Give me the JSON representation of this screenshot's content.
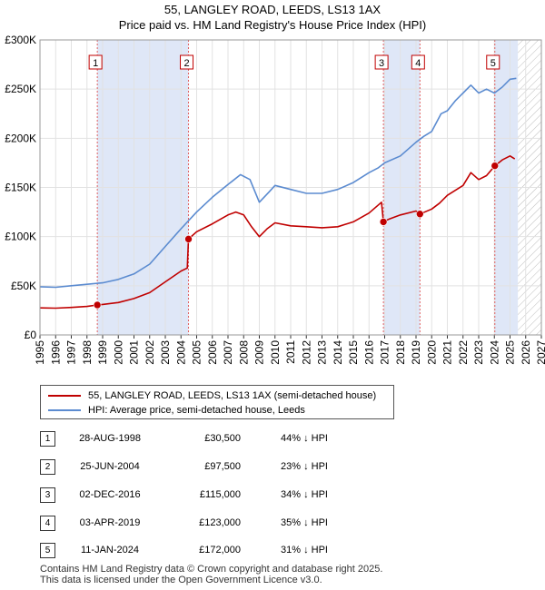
{
  "title_line1": "55, LANGLEY ROAD, LEEDS, LS13 1AX",
  "title_line2": "Price paid vs. HM Land Registry's House Price Index (HPI)",
  "colors": {
    "property": "#c00000",
    "hpi": "#5b8bd0",
    "shade": "#dfe7f7",
    "vline": "#e06060"
  },
  "chart_data": {
    "type": "line",
    "title": "Price paid vs. HM Land Registry's House Price Index (HPI)",
    "xlim": [
      1995,
      2027
    ],
    "ylim": [
      0,
      300000
    ],
    "x_ticks": [
      "1995",
      "1996",
      "1997",
      "1998",
      "1999",
      "2000",
      "2001",
      "2002",
      "2003",
      "2004",
      "2005",
      "2006",
      "2007",
      "2008",
      "2009",
      "2010",
      "2011",
      "2012",
      "2013",
      "2014",
      "2015",
      "2016",
      "2017",
      "2018",
      "2019",
      "2020",
      "2021",
      "2022",
      "2023",
      "2024",
      "2025",
      "2026",
      "2027"
    ],
    "y_ticks": [
      {
        "value": 0,
        "label": "£0"
      },
      {
        "value": 50000,
        "label": "£50K"
      },
      {
        "value": 100000,
        "label": "£100K"
      },
      {
        "value": 150000,
        "label": "£150K"
      },
      {
        "value": 200000,
        "label": "£200K"
      },
      {
        "value": 250000,
        "label": "£250K"
      },
      {
        "value": 300000,
        "label": "£300K"
      }
    ],
    "future_hatch_from": 2025.5,
    "shaded_periods": [
      [
        1998.66,
        2004.48
      ],
      [
        2016.92,
        2019.25
      ],
      [
        2024.03,
        2025.5
      ]
    ],
    "sales": [
      {
        "num": "1",
        "x": 1998.66,
        "value": 30500
      },
      {
        "num": "2",
        "x": 2004.48,
        "value": 97500
      },
      {
        "num": "3",
        "x": 2016.92,
        "value": 115000
      },
      {
        "num": "4",
        "x": 2019.25,
        "value": 123000
      },
      {
        "num": "5",
        "x": 2024.03,
        "value": 172000
      }
    ],
    "series": [
      {
        "name": "55, LANGLEY ROAD, LEEDS, LS13 1AX (semi-detached house)",
        "color": "#c00000",
        "points": [
          [
            1995,
            27500
          ],
          [
            1996,
            27200
          ],
          [
            1997,
            28000
          ],
          [
            1998,
            29000
          ],
          [
            1998.66,
            30500
          ],
          [
            1999,
            31000
          ],
          [
            2000,
            33000
          ],
          [
            2001,
            37000
          ],
          [
            2002,
            43000
          ],
          [
            2003,
            54000
          ],
          [
            2004,
            65000
          ],
          [
            2004.4,
            68000
          ],
          [
            2004.48,
            97500
          ],
          [
            2005,
            105000
          ],
          [
            2006,
            113000
          ],
          [
            2007,
            122000
          ],
          [
            2007.5,
            125000
          ],
          [
            2008,
            122000
          ],
          [
            2008.5,
            110000
          ],
          [
            2009,
            100000
          ],
          [
            2009.5,
            108000
          ],
          [
            2010,
            114000
          ],
          [
            2011,
            111000
          ],
          [
            2012,
            110000
          ],
          [
            2013,
            109000
          ],
          [
            2014,
            110000
          ],
          [
            2015,
            115000
          ],
          [
            2016,
            124000
          ],
          [
            2016.8,
            135000
          ],
          [
            2016.92,
            115000
          ],
          [
            2017.3,
            118000
          ],
          [
            2018,
            122000
          ],
          [
            2019,
            126000
          ],
          [
            2019.25,
            123000
          ],
          [
            2020,
            128000
          ],
          [
            2020.5,
            134000
          ],
          [
            2021,
            142000
          ],
          [
            2022,
            152000
          ],
          [
            2022.5,
            165000
          ],
          [
            2023,
            158000
          ],
          [
            2023.5,
            162000
          ],
          [
            2024.03,
            172000
          ],
          [
            2024.5,
            178000
          ],
          [
            2025,
            182000
          ],
          [
            2025.3,
            179000
          ]
        ]
      },
      {
        "name": "HPI: Average price, semi-detached house, Leeds",
        "color": "#5b8bd0",
        "points": [
          [
            1995,
            49000
          ],
          [
            1996,
            48500
          ],
          [
            1997,
            50000
          ],
          [
            1998,
            51500
          ],
          [
            1999,
            53000
          ],
          [
            2000,
            56500
          ],
          [
            2001,
            62000
          ],
          [
            2002,
            72000
          ],
          [
            2003,
            90000
          ],
          [
            2004,
            108000
          ],
          [
            2005,
            125000
          ],
          [
            2006,
            140000
          ],
          [
            2007,
            153000
          ],
          [
            2007.8,
            163000
          ],
          [
            2008.4,
            158000
          ],
          [
            2009,
            135000
          ],
          [
            2009.6,
            145000
          ],
          [
            2010,
            152000
          ],
          [
            2011,
            148000
          ],
          [
            2012,
            144000
          ],
          [
            2013,
            144000
          ],
          [
            2014,
            148000
          ],
          [
            2015,
            155000
          ],
          [
            2016,
            165000
          ],
          [
            2016.6,
            170000
          ],
          [
            2017,
            175000
          ],
          [
            2018,
            182000
          ],
          [
            2019,
            196000
          ],
          [
            2019.5,
            202000
          ],
          [
            2020,
            207000
          ],
          [
            2020.6,
            225000
          ],
          [
            2021,
            228000
          ],
          [
            2021.5,
            238000
          ],
          [
            2022,
            246000
          ],
          [
            2022.5,
            254000
          ],
          [
            2023,
            246000
          ],
          [
            2023.5,
            250000
          ],
          [
            2024,
            246000
          ],
          [
            2024.5,
            252000
          ],
          [
            2025,
            260000
          ],
          [
            2025.4,
            261000
          ]
        ]
      }
    ]
  },
  "legend": {
    "property_label": "55, LANGLEY ROAD, LEEDS, LS13 1AX (semi-detached house)",
    "hpi_label": "HPI: Average price, semi-detached house, Leeds"
  },
  "sales_table": [
    {
      "num": "1",
      "date": "28-AUG-1998",
      "price": "£30,500",
      "hpi": "44% ↓ HPI"
    },
    {
      "num": "2",
      "date": "25-JUN-2004",
      "price": "£97,500",
      "hpi": "23% ↓ HPI"
    },
    {
      "num": "3",
      "date": "02-DEC-2016",
      "price": "£115,000",
      "hpi": "34% ↓ HPI"
    },
    {
      "num": "4",
      "date": "03-APR-2019",
      "price": "£123,000",
      "hpi": "35% ↓ HPI"
    },
    {
      "num": "5",
      "date": "11-JAN-2024",
      "price": "£172,000",
      "hpi": "31% ↓ HPI"
    }
  ],
  "footer": {
    "line1": "Contains HM Land Registry data © Crown copyright and database right 2025.",
    "line2": "This data is licensed under the Open Government Licence v3.0."
  }
}
